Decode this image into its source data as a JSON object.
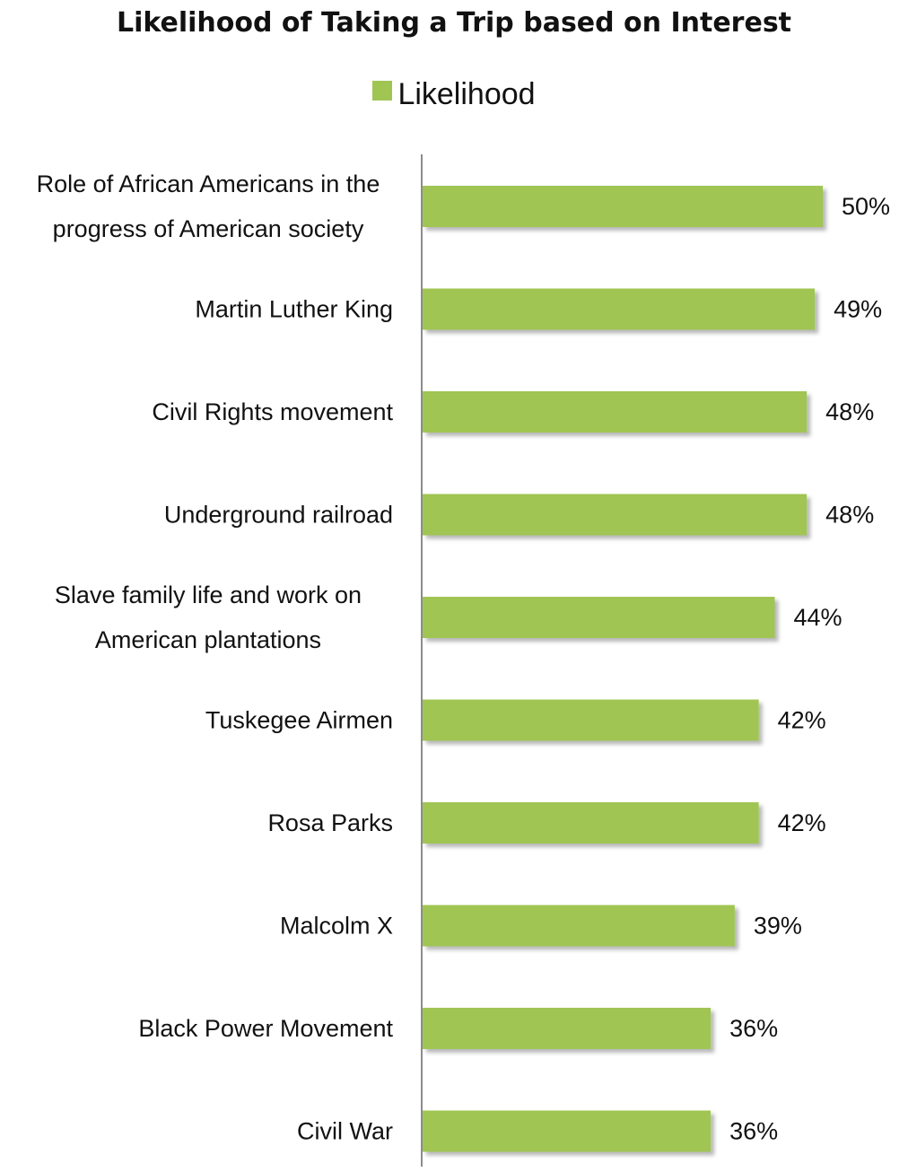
{
  "chart_data": {
    "type": "bar",
    "orientation": "horizontal",
    "title": "Likelihood of Taking a Trip based on Interest",
    "legend": {
      "position": "top",
      "entries": [
        "Likelihood"
      ]
    },
    "series": [
      {
        "name": "Likelihood",
        "color": "#a0c553",
        "values": [
          50,
          49,
          48,
          48,
          44,
          42,
          42,
          39,
          36,
          36
        ],
        "labels": [
          "50%",
          "49%",
          "48%",
          "48%",
          "44%",
          "42%",
          "42%",
          "39%",
          "36%",
          "36%"
        ]
      }
    ],
    "categories": [
      "Role of African Americans in the progress of American society",
      "Martin Luther King",
      "Civil Rights movement",
      "Underground railroad",
      "Slave family life and work on American plantations",
      "Tuskegee Airmen",
      "Rosa Parks",
      "Malcolm X",
      "Black Power Movement",
      "Civil War"
    ],
    "category_label_lines": [
      [
        "Role of African Americans in the",
        "progress of American society"
      ],
      [
        "Martin Luther King"
      ],
      [
        "Civil Rights movement"
      ],
      [
        "Underground railroad"
      ],
      [
        "Slave family life and work on",
        "American plantations"
      ],
      [
        "Tuskegee Airmen"
      ],
      [
        "Rosa Parks"
      ],
      [
        "Malcolm X"
      ],
      [
        "Black Power Movement"
      ],
      [
        "Civil War"
      ]
    ],
    "xlim": [
      0,
      50
    ],
    "value_unit": "%",
    "grid": false,
    "axis_line_color": "#8c8c8c"
  }
}
